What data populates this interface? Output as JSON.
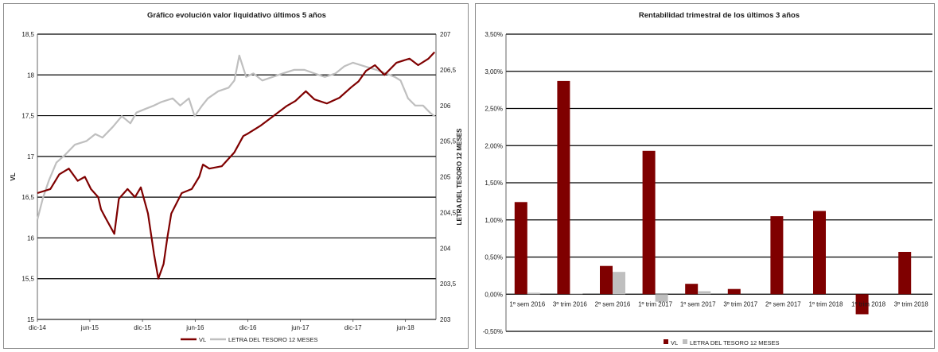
{
  "colors": {
    "vl": "#7f0000",
    "letra": "#bfbfbf",
    "grid": "#000000"
  },
  "chart_data": [
    {
      "type": "line",
      "title": "Gráfico evolución valor liquidativo últimos 5 años",
      "ylabel": "VL",
      "y2label": "LETRA DEL TESORO 12 MESES",
      "xlabel": "",
      "x_tick_labels": [
        "dic-14",
        "jun-15",
        "dic-15",
        "jun-16",
        "dic-16",
        "jun-17",
        "dic-17",
        "jun-18"
      ],
      "x_tick_dates": [
        "2014-12-01",
        "2015-06-01",
        "2015-12-01",
        "2016-06-01",
        "2016-12-01",
        "2017-06-01",
        "2017-12-01",
        "2018-06-01"
      ],
      "xlim": [
        "2014-12-01",
        "2018-09-15"
      ],
      "ylim": [
        15,
        18.5
      ],
      "y_ticks": [
        "15",
        "15,5",
        "16",
        "16,5",
        "17",
        "17,5",
        "18",
        "18,5"
      ],
      "y2lim": [
        203,
        207
      ],
      "y2_ticks": [
        "203",
        "203,5",
        "204",
        "204,5",
        "205",
        "205,5",
        "206",
        "206,5",
        "207"
      ],
      "grid": "horizontal",
      "legend": "bottom",
      "series": [
        {
          "name": "VL",
          "axis": "left",
          "x": [
            "2014-12-01",
            "2015-01-15",
            "2015-02-15",
            "2015-03-20",
            "2015-04-20",
            "2015-05-15",
            "2015-06-05",
            "2015-06-30",
            "2015-07-10",
            "2015-07-25",
            "2015-08-25",
            "2015-09-10",
            "2015-10-10",
            "2015-11-05",
            "2015-11-25",
            "2015-12-20",
            "2016-01-10",
            "2016-01-25",
            "2016-02-12",
            "2016-02-25",
            "2016-03-10",
            "2016-04-15",
            "2016-05-20",
            "2016-06-15",
            "2016-06-28",
            "2016-07-20",
            "2016-09-01",
            "2016-10-15",
            "2016-11-15",
            "2016-12-01",
            "2017-01-15",
            "2017-03-01",
            "2017-04-15",
            "2017-05-15",
            "2017-06-20",
            "2017-07-20",
            "2017-09-01",
            "2017-10-15",
            "2017-11-25",
            "2017-12-20",
            "2018-01-15",
            "2018-02-15",
            "2018-03-20",
            "2018-05-01",
            "2018-06-15",
            "2018-07-15",
            "2018-08-20",
            "2018-09-10"
          ],
          "values": [
            16.55,
            16.6,
            16.78,
            16.85,
            16.7,
            16.75,
            16.6,
            16.5,
            16.35,
            16.25,
            16.05,
            16.48,
            16.6,
            16.5,
            16.62,
            16.3,
            15.8,
            15.5,
            15.68,
            16.0,
            16.3,
            16.55,
            16.6,
            16.75,
            16.9,
            16.85,
            16.88,
            17.05,
            17.25,
            17.28,
            17.38,
            17.5,
            17.62,
            17.68,
            17.8,
            17.7,
            17.65,
            17.72,
            17.85,
            17.92,
            18.05,
            18.12,
            18.0,
            18.15,
            18.2,
            18.12,
            18.2,
            18.28
          ]
        },
        {
          "name": "LETRA DEL TESORO 12 MESES",
          "axis": "right",
          "x": [
            "2014-12-01",
            "2014-12-20",
            "2015-01-10",
            "2015-02-05",
            "2015-03-05",
            "2015-04-10",
            "2015-05-20",
            "2015-06-20",
            "2015-07-15",
            "2015-08-20",
            "2015-09-20",
            "2015-10-20",
            "2015-11-10",
            "2015-12-10",
            "2016-01-10",
            "2016-02-05",
            "2016-03-15",
            "2016-04-10",
            "2016-05-10",
            "2016-05-30",
            "2016-06-25",
            "2016-07-15",
            "2016-08-20",
            "2016-09-25",
            "2016-10-15",
            "2016-11-01",
            "2016-11-25",
            "2016-12-20",
            "2017-01-20",
            "2017-02-25",
            "2017-04-01",
            "2017-05-10",
            "2017-06-15",
            "2017-07-20",
            "2017-08-25",
            "2017-10-01",
            "2017-11-01",
            "2017-12-01",
            "2018-01-10",
            "2018-02-20",
            "2018-03-25",
            "2018-04-25",
            "2018-05-15",
            "2018-06-10",
            "2018-07-05",
            "2018-08-01",
            "2018-08-25",
            "2018-09-10"
          ],
          "values": [
            204.4,
            204.7,
            204.95,
            205.2,
            205.3,
            205.45,
            205.5,
            205.6,
            205.55,
            205.7,
            205.85,
            205.75,
            205.9,
            205.95,
            206.0,
            206.05,
            206.1,
            206.0,
            206.1,
            205.85,
            206.0,
            206.1,
            206.2,
            206.25,
            206.35,
            206.7,
            206.4,
            206.45,
            206.35,
            206.4,
            206.45,
            206.5,
            206.5,
            206.45,
            206.4,
            206.45,
            206.55,
            206.6,
            206.55,
            206.5,
            206.45,
            206.4,
            206.35,
            206.1,
            206.0,
            206.0,
            205.9,
            205.85
          ]
        }
      ]
    },
    {
      "type": "bar",
      "title": "Rentabilidad trimestral de los últimos 3 años",
      "categories": [
        "1º sem 2016",
        "3º trim 2016",
        "2º sem 2016",
        "1º trim 2017",
        "1º sem 2017",
        "3º trim 2017",
        "2º sem 2017",
        "1º trim 2018",
        "1º trim 2018",
        "3º trim 2018"
      ],
      "ylim": [
        -0.5,
        3.5
      ],
      "y_ticks": [
        "-0,50%",
        "0,00%",
        "0,50%",
        "1,00%",
        "1,50%",
        "2,00%",
        "2,50%",
        "3,00%",
        "3,50%"
      ],
      "grid": "horizontal",
      "legend": "bottom",
      "series": [
        {
          "name": "VL",
          "values": [
            1.24,
            2.87,
            0.38,
            1.93,
            0.14,
            0.07,
            1.05,
            1.12,
            -0.27,
            0.57
          ]
        },
        {
          "name": "LETRA DEL TESORO 12 MESES",
          "values": [
            0.02,
            0.01,
            0.3,
            -0.1,
            0.04,
            0.0,
            0.0,
            0.0,
            0.0,
            0.0
          ]
        }
      ]
    }
  ]
}
